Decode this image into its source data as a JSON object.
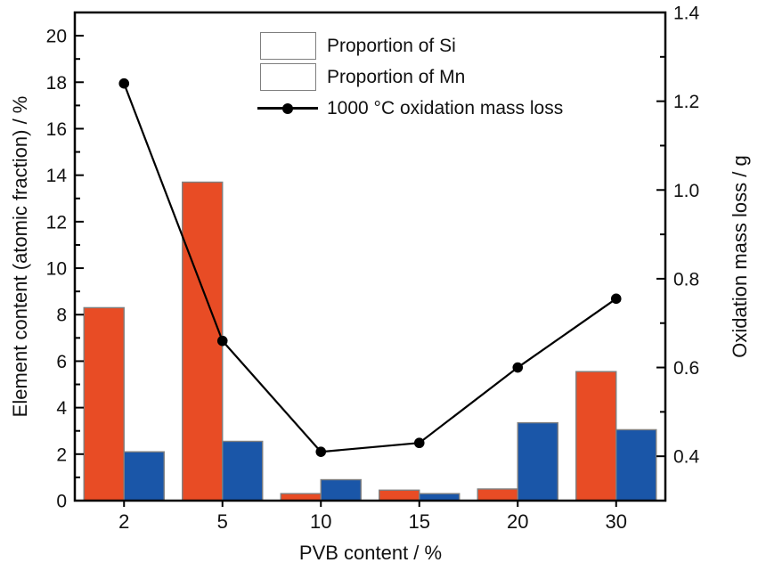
{
  "chart_data": {
    "type": "bar+line",
    "categories": [
      "2",
      "5",
      "10",
      "15",
      "20",
      "30"
    ],
    "series": [
      {
        "name": "Proportion of Si",
        "type": "bar",
        "axis": "left",
        "color": "#e84c25",
        "values": [
          8.3,
          13.7,
          0.3,
          0.45,
          0.5,
          5.55
        ]
      },
      {
        "name": "Proportion of Mn",
        "type": "bar",
        "axis": "left",
        "color": "#1a56a8",
        "values": [
          2.1,
          2.55,
          0.9,
          0.3,
          3.35,
          3.05
        ]
      },
      {
        "name": "1000 °C oxidation mass loss",
        "type": "line",
        "axis": "right",
        "color": "#000000",
        "values": [
          1.24,
          0.66,
          0.41,
          0.43,
          0.6,
          0.755
        ]
      }
    ],
    "title": "",
    "xlabel": "PVB content / %",
    "ylabel_left": "Element content (atomic fraction) / %",
    "ylabel_right": "Oxidation mass loss / g",
    "yaxis_left": {
      "min": 0,
      "max": 21,
      "major_ticks": [
        0,
        2,
        4,
        6,
        8,
        10,
        12,
        14,
        16,
        18,
        20
      ],
      "minor_step": 1
    },
    "yaxis_right": {
      "min": 0.3,
      "max": 1.4,
      "major_ticks": [
        0.4,
        0.6,
        0.8,
        1.0,
        1.2,
        1.4
      ],
      "minor_step": 0.1
    },
    "grid": false,
    "legend_position": "inside-top-center",
    "colors": {
      "si_bar": "#e84c25",
      "mn_bar": "#1a56a8",
      "line": "#000000",
      "bar_border": "#7f7f7f",
      "axis": "#000000"
    }
  }
}
